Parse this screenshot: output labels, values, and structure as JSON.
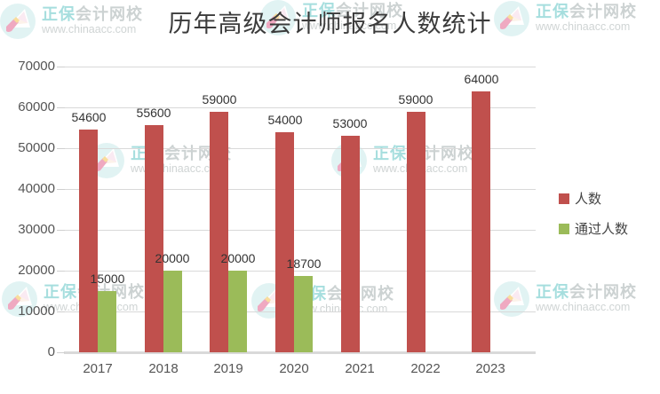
{
  "title": "历年高级会计师报名人数统计",
  "watermark": {
    "brand_teal": "正保",
    "brand_grey": "会计网校",
    "url": "www.chinaacc.com"
  },
  "chart_data": {
    "type": "bar",
    "title": "历年高级会计师报名人数统计",
    "categories": [
      "2017",
      "2018",
      "2019",
      "2020",
      "2021",
      "2022",
      "2023"
    ],
    "series": [
      {
        "name": "人数",
        "color": "#c0504d",
        "values": [
          54600,
          55600,
          59000,
          54000,
          53000,
          59000,
          64000
        ]
      },
      {
        "name": "通过人数",
        "color": "#9bbb59",
        "values": [
          15000,
          20000,
          20000,
          18700,
          null,
          null,
          null
        ]
      }
    ],
    "xlabel": "",
    "ylabel": "",
    "ylim": [
      0,
      70000
    ],
    "yticks": [
      0,
      10000,
      20000,
      30000,
      40000,
      50000,
      60000,
      70000
    ],
    "grid": true,
    "data_labels": true,
    "legend_position": "right",
    "colors": {
      "gridline": "#d9d9d9",
      "axis_line": "#d9d9d9",
      "tick_label": "#555555",
      "data_label": "#333333"
    }
  }
}
